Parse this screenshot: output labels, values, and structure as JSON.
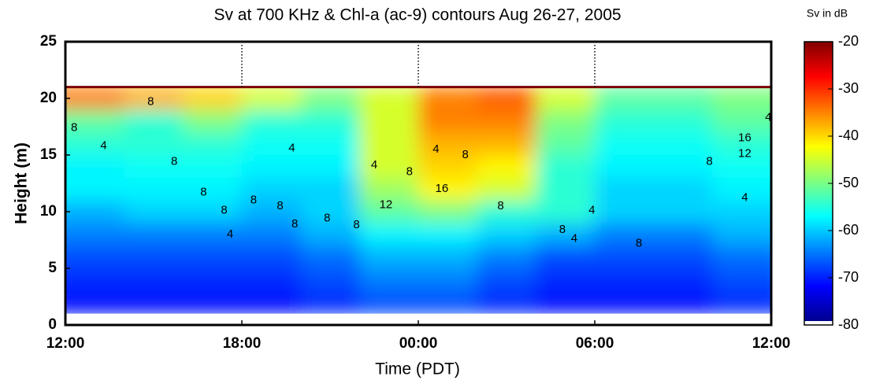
{
  "chart_data": {
    "type": "heatmap",
    "title": "Sv at 700 KHz & Chl-a (ac-9) contours Aug 26-27, 2005",
    "x_label": "Time (PDT)",
    "y_label": "Height (m)",
    "colorbar_label": "Sv in dB",
    "colormap": "jet",
    "x": [
      1,
      3,
      5,
      7,
      9,
      11,
      13,
      15,
      17,
      19,
      21,
      23
    ],
    "y": [
      20,
      18,
      16,
      14,
      12,
      10,
      8,
      6,
      4,
      2
    ],
    "z": [
      [
        -35,
        -38,
        -40,
        -45,
        -50,
        -45,
        -35,
        -33,
        -45,
        -52,
        -52,
        -50
      ],
      [
        -52,
        -55,
        -50,
        -55,
        -55,
        -45,
        -35,
        -35,
        -50,
        -55,
        -55,
        -52
      ],
      [
        -55,
        -55,
        -55,
        -57,
        -57,
        -45,
        -38,
        -38,
        -52,
        -57,
        -57,
        -55
      ],
      [
        -58,
        -57,
        -57,
        -58,
        -58,
        -45,
        -40,
        -42,
        -55,
        -58,
        -58,
        -57
      ],
      [
        -58,
        -58,
        -58,
        -60,
        -60,
        -48,
        -42,
        -45,
        -55,
        -60,
        -60,
        -58
      ],
      [
        -62,
        -60,
        -60,
        -62,
        -60,
        -52,
        -50,
        -55,
        -55,
        -60,
        -60,
        -60
      ],
      [
        -65,
        -65,
        -65,
        -65,
        -62,
        -58,
        -58,
        -60,
        -62,
        -65,
        -65,
        -62
      ],
      [
        -68,
        -68,
        -68,
        -68,
        -66,
        -62,
        -62,
        -65,
        -68,
        -68,
        -68,
        -66
      ],
      [
        -70,
        -70,
        -70,
        -70,
        -68,
        -65,
        -65,
        -68,
        -70,
        -70,
        -70,
        -68
      ],
      [
        -72,
        -72,
        -72,
        -72,
        -70,
        -68,
        -68,
        -70,
        -72,
        -72,
        -72,
        -70
      ]
    ],
    "xlim": [
      0,
      24
    ],
    "ylim": [
      0,
      25
    ],
    "xticks": [
      {
        "value": 0,
        "label": "12:00"
      },
      {
        "value": 6,
        "label": "18:00"
      },
      {
        "value": 12,
        "label": "00:00"
      },
      {
        "value": 18,
        "label": "06:00"
      },
      {
        "value": 24,
        "label": "12:00"
      }
    ],
    "yticks": [
      0,
      5,
      10,
      15,
      20,
      25
    ],
    "zlim": [
      -80,
      -20
    ],
    "zticks": [
      -20,
      -30,
      -40,
      -50,
      -60,
      -70,
      -80
    ],
    "contour_labels": [
      {
        "x": 0.3,
        "y": 17.4,
        "level": 8
      },
      {
        "x": 1.3,
        "y": 15.8,
        "level": 4
      },
      {
        "x": 2.9,
        "y": 19.7,
        "level": 8
      },
      {
        "x": 3.7,
        "y": 14.4,
        "level": 8
      },
      {
        "x": 4.7,
        "y": 11.7,
        "level": 8
      },
      {
        "x": 5.4,
        "y": 10.1,
        "level": 8
      },
      {
        "x": 5.6,
        "y": 8.0,
        "level": 4
      },
      {
        "x": 6.4,
        "y": 11.0,
        "level": 8
      },
      {
        "x": 7.3,
        "y": 10.5,
        "level": 8
      },
      {
        "x": 7.8,
        "y": 8.9,
        "level": 8
      },
      {
        "x": 7.7,
        "y": 15.6,
        "level": 4
      },
      {
        "x": 8.9,
        "y": 9.4,
        "level": 8
      },
      {
        "x": 9.9,
        "y": 8.8,
        "level": 8
      },
      {
        "x": 10.5,
        "y": 14.1,
        "level": 4
      },
      {
        "x": 10.9,
        "y": 10.6,
        "level": 12
      },
      {
        "x": 11.7,
        "y": 13.5,
        "level": 8
      },
      {
        "x": 12.6,
        "y": 15.5,
        "level": 4
      },
      {
        "x": 12.8,
        "y": 12.0,
        "level": 16
      },
      {
        "x": 13.6,
        "y": 15.0,
        "level": 8
      },
      {
        "x": 14.8,
        "y": 10.5,
        "level": 8
      },
      {
        "x": 16.9,
        "y": 8.4,
        "level": 8
      },
      {
        "x": 17.3,
        "y": 7.6,
        "level": 4
      },
      {
        "x": 17.9,
        "y": 10.1,
        "level": 4
      },
      {
        "x": 19.5,
        "y": 7.2,
        "level": 8
      },
      {
        "x": 21.9,
        "y": 14.4,
        "level": 8
      },
      {
        "x": 23.1,
        "y": 16.5,
        "level": 16
      },
      {
        "x": 23.1,
        "y": 15.1,
        "level": 12
      },
      {
        "x": 23.1,
        "y": 11.2,
        "level": 4
      },
      {
        "x": 23.9,
        "y": 18.3,
        "level": 4
      }
    ]
  }
}
